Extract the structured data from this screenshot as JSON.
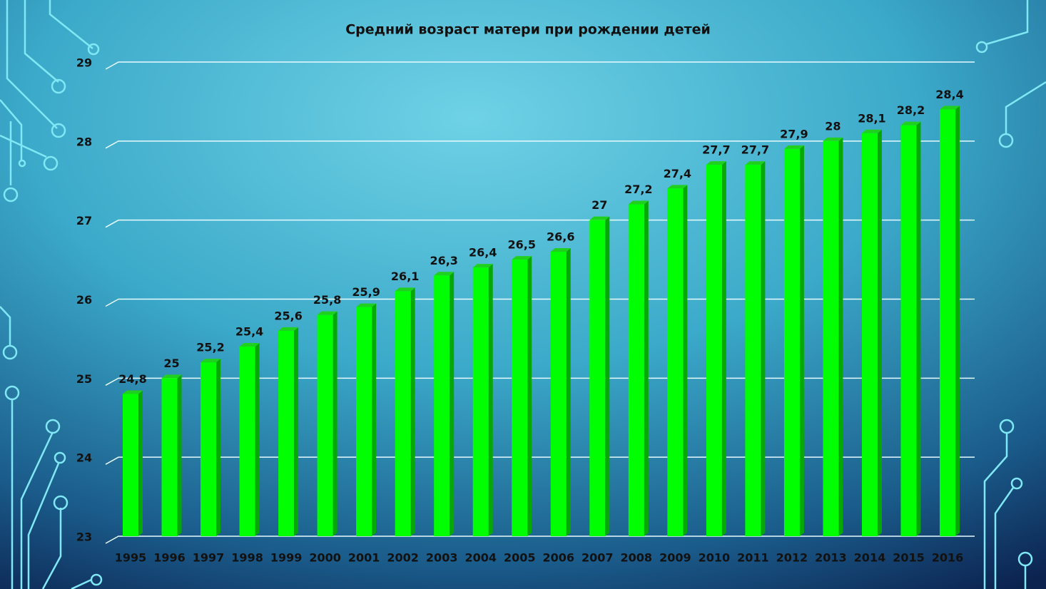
{
  "chart_data": {
    "type": "bar",
    "title": "Средний возраст матери при рождении детей",
    "categories": [
      "1995",
      "1996",
      "1997",
      "1998",
      "1999",
      "2000",
      "2001",
      "2002",
      "2003",
      "2004",
      "2005",
      "2006",
      "2007",
      "2008",
      "2009",
      "2010",
      "2011",
      "2012",
      "2013",
      "2014",
      "2015",
      "2016"
    ],
    "values": [
      24.8,
      25,
      25.2,
      25.4,
      25.6,
      25.8,
      25.9,
      26.1,
      26.3,
      26.4,
      26.5,
      26.6,
      27,
      27.2,
      27.4,
      27.7,
      27.7,
      27.9,
      28,
      28.1,
      28.2,
      28.4
    ],
    "value_labels": [
      "24,8",
      "25",
      "25,2",
      "25,4",
      "25,6",
      "25,8",
      "25,9",
      "26,1",
      "26,3",
      "26,4",
      "26,5",
      "26,6",
      "27",
      "27,2",
      "27,4",
      "27,7",
      "27,7",
      "27,9",
      "28",
      "28,1",
      "28,2",
      "28,4"
    ],
    "color": "#00ff00",
    "ylim": [
      23,
      29
    ],
    "yticks": [
      23,
      24,
      25,
      26,
      27,
      28,
      29
    ],
    "grid": true
  }
}
